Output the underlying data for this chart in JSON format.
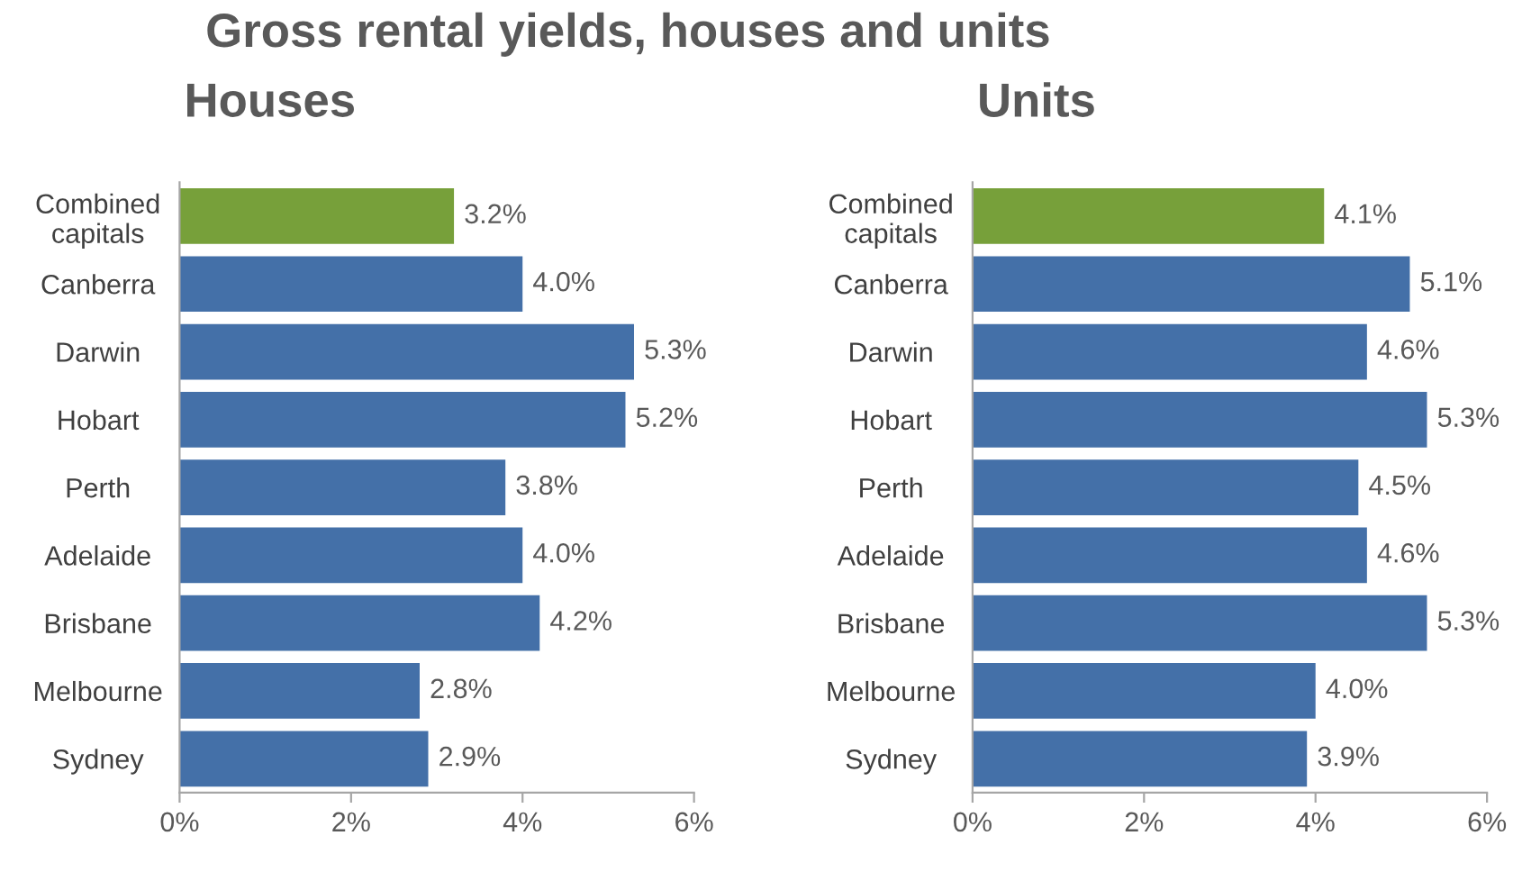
{
  "chart_data": [
    {
      "type": "bar",
      "orientation": "horizontal",
      "title": "Gross rental yields, houses and units",
      "subtitle": "Houses",
      "categories": [
        "Combined\ncapitals",
        "Canberra",
        "Darwin",
        "Hobart",
        "Perth",
        "Adelaide",
        "Brisbane",
        "Melbourne",
        "Sydney"
      ],
      "values": [
        3.2,
        4.0,
        5.3,
        5.2,
        3.8,
        4.0,
        4.2,
        2.8,
        2.9
      ],
      "value_labels": [
        "3.2%",
        "4.0%",
        "5.3%",
        "5.2%",
        "3.8%",
        "4.0%",
        "4.2%",
        "2.8%",
        "2.9%"
      ],
      "colors": [
        "#77a03a",
        "#4470a8",
        "#4470a8",
        "#4470a8",
        "#4470a8",
        "#4470a8",
        "#4470a8",
        "#4470a8",
        "#4470a8"
      ],
      "xlim": [
        0,
        6
      ],
      "xticks": [
        {
          "value": 0,
          "label": "0%"
        },
        {
          "value": 2,
          "label": "2%"
        },
        {
          "value": 4,
          "label": "4%"
        },
        {
          "value": 6,
          "label": "6%"
        }
      ],
      "grid": false
    },
    {
      "type": "bar",
      "orientation": "horizontal",
      "subtitle": "Units",
      "categories": [
        "Combined\ncapitals",
        "Canberra",
        "Darwin",
        "Hobart",
        "Perth",
        "Adelaide",
        "Brisbane",
        "Melbourne",
        "Sydney"
      ],
      "values": [
        4.1,
        5.1,
        4.6,
        5.3,
        4.5,
        4.6,
        5.3,
        4.0,
        3.9
      ],
      "value_labels": [
        "4.1%",
        "5.1%",
        "4.6%",
        "5.3%",
        "4.5%",
        "4.6%",
        "5.3%",
        "4.0%",
        "3.9%"
      ],
      "colors": [
        "#77a03a",
        "#4470a8",
        "#4470a8",
        "#4470a8",
        "#4470a8",
        "#4470a8",
        "#4470a8",
        "#4470a8",
        "#4470a8"
      ],
      "xlim": [
        0,
        6
      ],
      "xticks": [
        {
          "value": 0,
          "label": "0%"
        },
        {
          "value": 2,
          "label": "2%"
        },
        {
          "value": 4,
          "label": "4%"
        },
        {
          "value": 6,
          "label": "6%"
        }
      ],
      "grid": false
    }
  ]
}
